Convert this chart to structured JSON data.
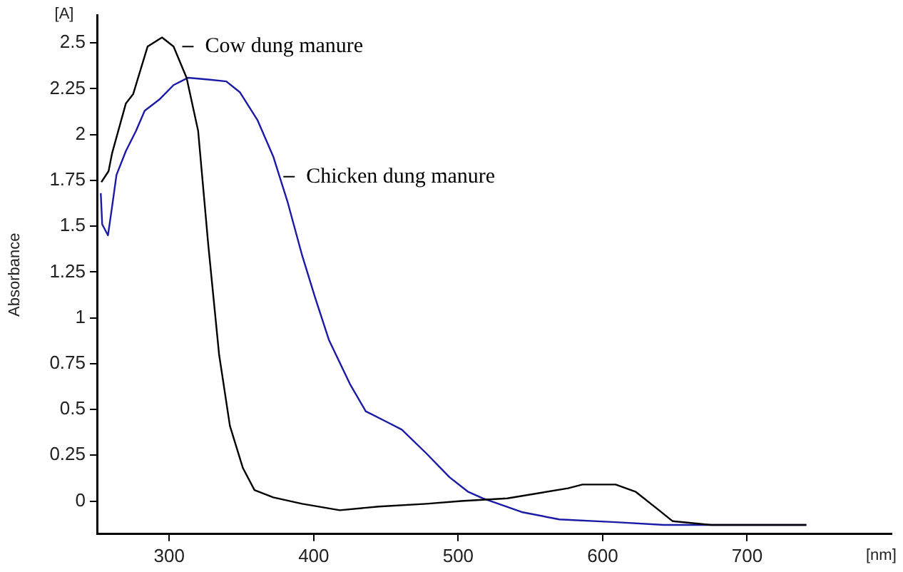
{
  "chart_data": {
    "type": "line",
    "ylabel": "Absorbance",
    "xlim": [
      250,
      800
    ],
    "ylim": [
      -0.18,
      2.65
    ],
    "xticks": [
      300,
      400,
      500,
      600,
      700
    ],
    "yticks": [
      0,
      0.25,
      0.5,
      0.75,
      1,
      1.25,
      1.5,
      1.75,
      2,
      2.25,
      2.5
    ],
    "grid": false,
    "legend": false,
    "marker": "none",
    "line_style": "solid",
    "series": [
      {
        "color": "#000000",
        "x": [
          253,
          258,
          260.5,
          270,
          275,
          285,
          295,
          303,
          312,
          320,
          327,
          334.5,
          342,
          351,
          359,
          372,
          392,
          418,
          445,
          478,
          502,
          534,
          576,
          586,
          609,
          623,
          639,
          648.5,
          675,
          708,
          741
        ],
        "values": [
          1.74,
          1.8,
          1.9,
          2.17,
          2.22,
          2.48,
          2.53,
          2.48,
          2.31,
          2.02,
          1.4,
          0.8,
          0.41,
          0.18,
          0.06,
          0.02,
          -0.015,
          -0.05,
          -0.03,
          -0.015,
          0,
          0.015,
          0.07,
          0.09,
          0.09,
          0.05,
          -0.05,
          -0.11,
          -0.13,
          -0.13,
          -0.13
        ]
      },
      {
        "color": "#1a1aa6",
        "x": [
          252.6,
          253.6,
          257.6,
          260.5,
          263.5,
          270,
          277,
          283,
          293,
          303,
          313,
          327,
          339.5,
          349,
          361,
          372,
          382,
          392,
          401,
          410.5,
          425,
          436,
          451,
          461,
          478,
          494,
          507,
          517,
          544,
          570,
          609,
          642.5,
          692,
          741
        ],
        "values": [
          1.68,
          1.51,
          1.45,
          1.61,
          1.78,
          1.91,
          2.02,
          2.13,
          2.19,
          2.27,
          2.31,
          2.3,
          2.29,
          2.23,
          2.08,
          1.88,
          1.63,
          1.34,
          1.11,
          0.88,
          0.64,
          0.49,
          0.43,
          0.39,
          0.26,
          0.13,
          0.05,
          0.015,
          -0.06,
          -0.1,
          -0.115,
          -0.13,
          -0.13,
          -0.13
        ]
      }
    ],
    "annotations": [
      {
        "text": "Cow dung manure",
        "x": 307,
        "y": 2.48
      },
      {
        "text": "Chicken dung manure",
        "x": 377,
        "y": 1.77
      },
      "[A]",
      "[nm]"
    ]
  }
}
